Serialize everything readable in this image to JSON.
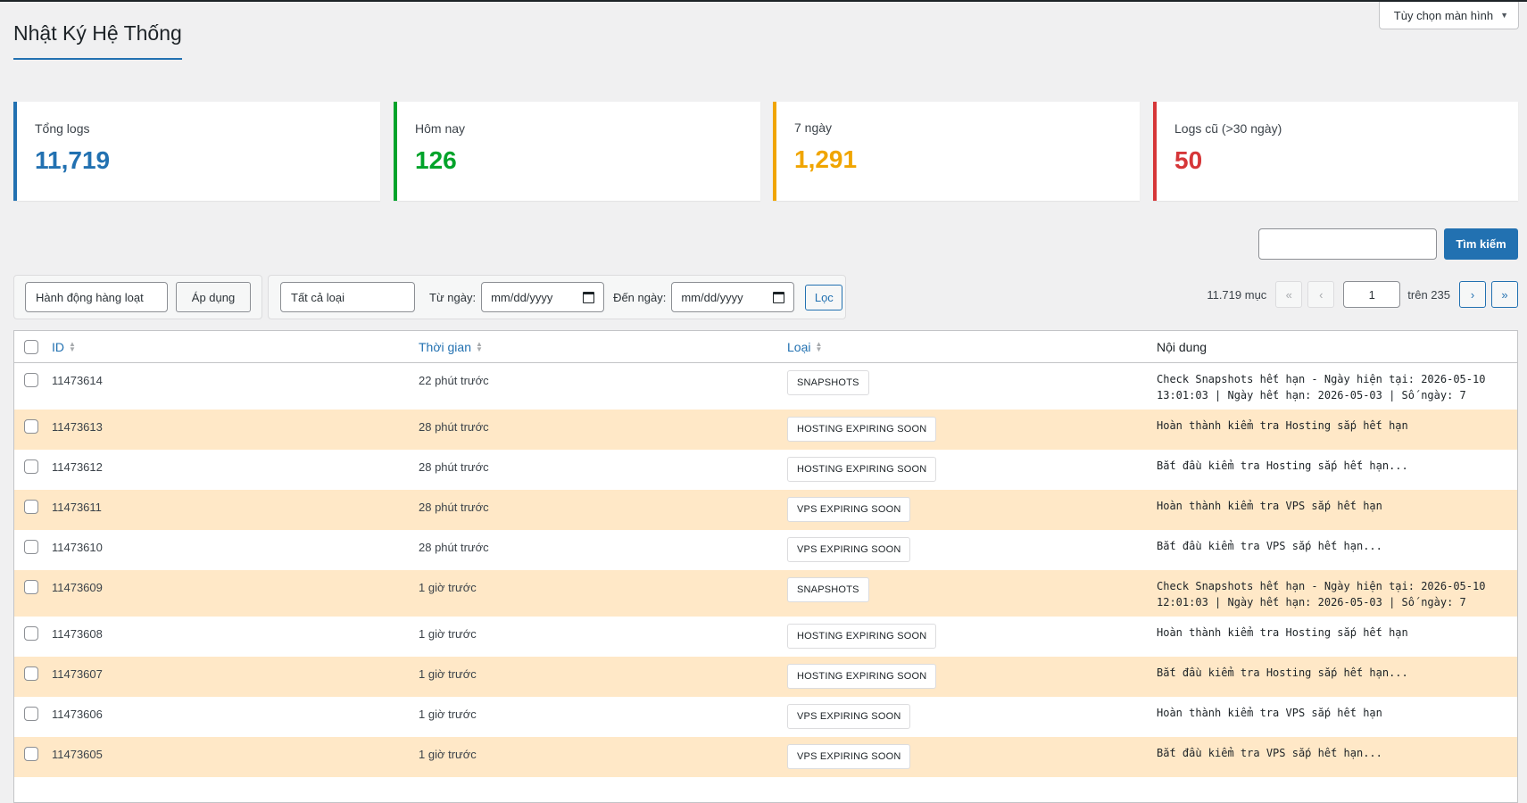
{
  "screen_options": {
    "label": "Tùy chọn màn hình"
  },
  "page": {
    "title": "Nhật Ký Hệ Thống"
  },
  "stats": [
    {
      "label": "Tổng logs",
      "value": "11,719",
      "color": "#2271b1"
    },
    {
      "label": "Hôm nay",
      "value": "126",
      "color": "#00a32a"
    },
    {
      "label": "7 ngày",
      "value": "1,291",
      "color": "#f0a500"
    },
    {
      "label": "Logs cũ (>30 ngày)",
      "value": "50",
      "color": "#d63638"
    }
  ],
  "search": {
    "button_label": "Tìm kiếm",
    "value": ""
  },
  "bulk": {
    "select_value": "Hành động hàng loạt",
    "apply_label": "Áp dụng"
  },
  "filter": {
    "type_value": "Tất cả loại",
    "from_label": "Từ ngày:",
    "from_value": "mm/dd/yyyy",
    "to_label": "Đến ngày:",
    "to_value": "mm/dd/yyyy",
    "button_label": "Lọc"
  },
  "pagination": {
    "total": "11.719 mục",
    "first": "«",
    "prev": "‹",
    "current": "1",
    "of_label": "trên 235",
    "next": "›",
    "last": "»"
  },
  "table": {
    "headers": {
      "id": "ID",
      "time": "Thời gian",
      "type": "Loại",
      "content": "Nội dung"
    },
    "rows": [
      {
        "id": "11473614",
        "time": "22 phút trước",
        "type": "SNAPSHOTS",
        "content": "Check Snapshots hết hạn - Ngày hiện tại: 2026-05-10\n13:01:03 | Ngày hết hạn: 2026-05-03 | Số ngày: 7"
      },
      {
        "id": "11473613",
        "time": "28 phút trước",
        "type": "HOSTING EXPIRING SOON",
        "content": "Hoàn thành kiểm tra Hosting sắp hết hạn"
      },
      {
        "id": "11473612",
        "time": "28 phút trước",
        "type": "HOSTING EXPIRING SOON",
        "content": "Bắt đầu kiểm tra Hosting sắp hết hạn..."
      },
      {
        "id": "11473611",
        "time": "28 phút trước",
        "type": "VPS EXPIRING SOON",
        "content": "Hoàn thành kiểm tra VPS sắp hết hạn"
      },
      {
        "id": "11473610",
        "time": "28 phút trước",
        "type": "VPS EXPIRING SOON",
        "content": "Bắt đầu kiểm tra VPS sắp hết hạn..."
      },
      {
        "id": "11473609",
        "time": "1 giờ trước",
        "type": "SNAPSHOTS",
        "content": "Check Snapshots hết hạn - Ngày hiện tại: 2026-05-10\n12:01:03 | Ngày hết hạn: 2026-05-03 | Số ngày: 7"
      },
      {
        "id": "11473608",
        "time": "1 giờ trước",
        "type": "HOSTING EXPIRING SOON",
        "content": "Hoàn thành kiểm tra Hosting sắp hết hạn"
      },
      {
        "id": "11473607",
        "time": "1 giờ trước",
        "type": "HOSTING EXPIRING SOON",
        "content": "Bắt đầu kiểm tra Hosting sắp hết hạn..."
      },
      {
        "id": "11473606",
        "time": "1 giờ trước",
        "type": "VPS EXPIRING SOON",
        "content": "Hoàn thành kiểm tra VPS sắp hết hạn"
      },
      {
        "id": "11473605",
        "time": "1 giờ trước",
        "type": "VPS EXPIRING SOON",
        "content": "Bắt đầu kiểm tra VPS sắp hết hạn..."
      }
    ]
  }
}
